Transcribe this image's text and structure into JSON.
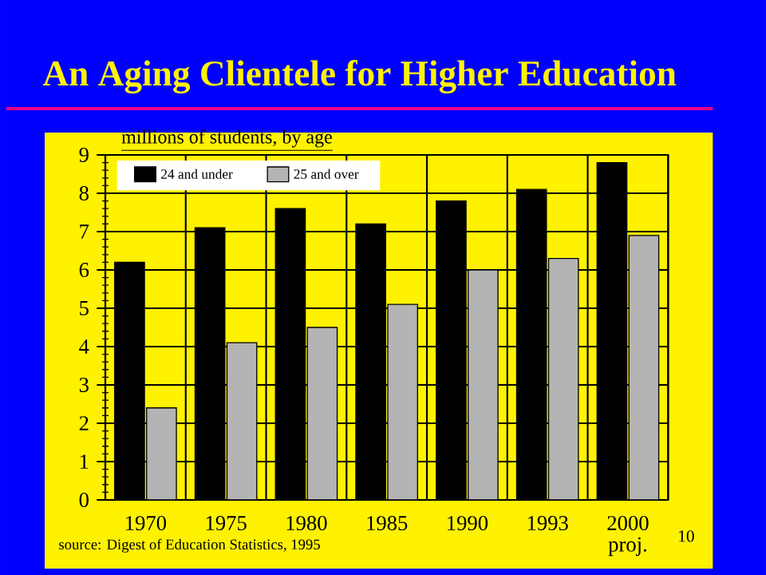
{
  "chart_data": {
    "type": "bar",
    "title": "An Aging Clientele for Higher Education",
    "ylabel": "millions of students, by age",
    "categories": [
      "1970",
      "1975",
      "1980",
      "1985",
      "1990",
      "1993",
      "2000 proj."
    ],
    "series": [
      {
        "name": "24 and under",
        "color": "#000000",
        "values": [
          6.2,
          7.1,
          7.6,
          7.2,
          7.8,
          8.1,
          8.8
        ]
      },
      {
        "name": "25 and over",
        "color": "#b4b4b4",
        "values": [
          2.4,
          4.1,
          4.5,
          5.1,
          6.0,
          6.3,
          6.9
        ]
      }
    ],
    "ylim": [
      0,
      9
    ],
    "yticks": [
      0,
      1,
      2,
      3,
      4,
      5,
      6,
      7,
      8,
      9
    ],
    "grid": true,
    "legend": "top left",
    "annotations": [
      "source: Digest of Education Statistics, 1995",
      "10"
    ]
  }
}
